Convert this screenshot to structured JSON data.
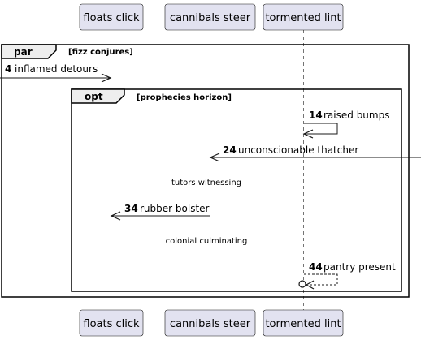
{
  "participants": [
    {
      "name": "floats click"
    },
    {
      "name": "cannibals steer"
    },
    {
      "name": "tormented lint"
    }
  ],
  "frames": {
    "par": {
      "keyword": "par",
      "condition": "[fizz conjures]"
    },
    "opt": {
      "keyword": "opt",
      "condition": "[prophecies horizon]"
    }
  },
  "messages": [
    {
      "number": "4",
      "label": "inflamed detours",
      "from": "left-edge",
      "to": "floats click",
      "style": "solid"
    },
    {
      "number": "14",
      "label": "raised bumps",
      "from": "tormented lint",
      "to": "tormented lint",
      "style": "solid"
    },
    {
      "number": "24",
      "label": "unconscionable thatcher",
      "from": "right-edge",
      "to": "cannibals steer",
      "style": "solid"
    },
    {
      "number": "34",
      "label": "rubber bolster",
      "from": "cannibals steer",
      "to": "floats click",
      "style": "solid"
    },
    {
      "number": "44",
      "label": "pantry present",
      "from": "tormented lint",
      "to": "tormented lint",
      "style": "dashed-lost"
    }
  ],
  "dividers": [
    {
      "label": "tutors witnessing"
    },
    {
      "label": "colonial culminating"
    }
  ],
  "colors": {
    "participant_fill": "#e2e2f0",
    "participant_border": "#181818",
    "frame_tab_fill": "#eeeeee",
    "lifeline": "#181818",
    "line": "#181818"
  }
}
